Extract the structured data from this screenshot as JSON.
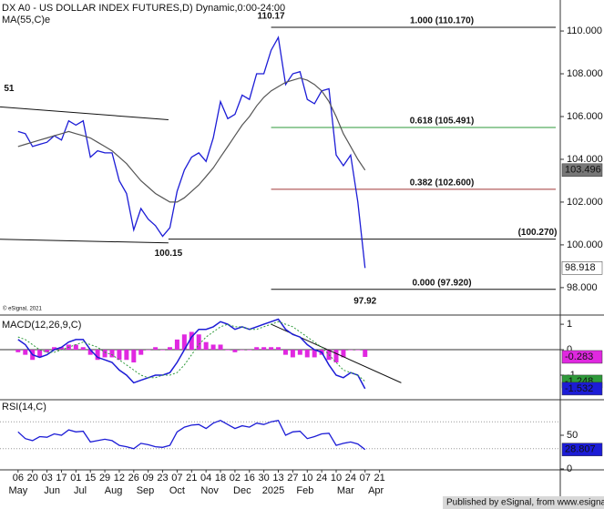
{
  "chart_data": {
    "type": "line",
    "title": "DX A0 - US DOLLAR INDEX FUTURES,D) Dynamic,0:00-24:00",
    "source": "© eSignal, 2021",
    "footer": "Published by eSignal, from www.esignal.com",
    "x": [
      0,
      1,
      2,
      3,
      4,
      5,
      6,
      7,
      8,
      9,
      10,
      11,
      12,
      13,
      14,
      15,
      16,
      17,
      18,
      19,
      20,
      21,
      22,
      23,
      24,
      25,
      26,
      27,
      28,
      29,
      30,
      31,
      32,
      33,
      34,
      35,
      36,
      37,
      38,
      39,
      40,
      41,
      42,
      43,
      44,
      45,
      46,
      47,
      48
    ],
    "xlim": [
      -2.5,
      75
    ],
    "xticks": [
      {
        "value": 0,
        "label": "06"
      },
      {
        "value": 2,
        "label": "20"
      },
      {
        "value": 4,
        "label": "03"
      },
      {
        "value": 6,
        "label": "17"
      },
      {
        "value": 8,
        "label": "01"
      },
      {
        "value": 10,
        "label": "15"
      },
      {
        "value": 12,
        "label": "29"
      },
      {
        "value": 14,
        "label": "12"
      },
      {
        "value": 16,
        "label": "26"
      },
      {
        "value": 18,
        "label": "09"
      },
      {
        "value": 20,
        "label": "23"
      },
      {
        "value": 22,
        "label": "07"
      },
      {
        "value": 24,
        "label": "21"
      },
      {
        "value": 26,
        "label": "04"
      },
      {
        "value": 28,
        "label": "18"
      },
      {
        "value": 30,
        "label": "02"
      },
      {
        "value": 32,
        "label": "16"
      },
      {
        "value": 34,
        "label": "30"
      },
      {
        "value": 36,
        "label": "13"
      },
      {
        "value": 38,
        "label": "27"
      },
      {
        "value": 40,
        "label": "10"
      },
      {
        "value": 42,
        "label": "24"
      },
      {
        "value": 44,
        "label": "10"
      },
      {
        "value": 46,
        "label": "24"
      },
      {
        "value": 48,
        "label": "07"
      },
      {
        "value": 50,
        "label": "21"
      }
    ],
    "month_ticks": [
      {
        "value": 0,
        "label": "May"
      },
      {
        "value": 4.7,
        "label": "Jun"
      },
      {
        "value": 8.6,
        "label": "Jul"
      },
      {
        "value": 13.2,
        "label": "Aug"
      },
      {
        "value": 17.6,
        "label": "Sep"
      },
      {
        "value": 22,
        "label": "Oct"
      },
      {
        "value": 26.5,
        "label": "Nov"
      },
      {
        "value": 31,
        "label": "Dec"
      },
      {
        "value": 35.3,
        "label": "2025"
      },
      {
        "value": 39.7,
        "label": "Feb"
      },
      {
        "value": 45.3,
        "label": "Mar"
      },
      {
        "value": 49.5,
        "label": "Apr"
      }
    ],
    "ylim": [
      96.76,
      111.45
    ],
    "yticks": [
      {
        "value": 110,
        "label": "110.000"
      },
      {
        "value": 108,
        "label": "108.000"
      },
      {
        "value": 106,
        "label": "106.000"
      },
      {
        "value": 104,
        "label": "104.000"
      },
      {
        "value": 102,
        "label": "102.000"
      },
      {
        "value": 100,
        "label": "100.000"
      },
      {
        "value": 98,
        "label": "98.000"
      }
    ],
    "series": [
      {
        "color": "#1c1cd6",
        "values": [
          105.3,
          105.2,
          104.6,
          104.7,
          104.8,
          105.1,
          104.9,
          105.8,
          105.6,
          105.8,
          104.1,
          104.4,
          104.3,
          104.3,
          103.0,
          102.4,
          100.7,
          101.7,
          101.2,
          100.9,
          100.4,
          100.8,
          102.5,
          103.5,
          104.1,
          104.3,
          103.9,
          105.0,
          106.7,
          105.9,
          106.1,
          107.0,
          106.8,
          108.0,
          108.0,
          109.1,
          109.7,
          107.5,
          108.0,
          108.1,
          106.8,
          106.6,
          107.2,
          107.3,
          104.2,
          103.7,
          104.2,
          102.0,
          98.918
        ]
      },
      {
        "name": "MA(55,C)e",
        "color": "#555555",
        "values": [
          104.6,
          104.7,
          104.8,
          104.9,
          105.0,
          105.1,
          105.2,
          105.3,
          105.2,
          105.1,
          105.0,
          104.8,
          104.6,
          104.4,
          104.1,
          103.8,
          103.4,
          103.0,
          102.7,
          102.4,
          102.2,
          102.0,
          102.0,
          102.2,
          102.5,
          102.8,
          103.2,
          103.6,
          104.1,
          104.6,
          105.1,
          105.6,
          106.0,
          106.5,
          106.9,
          107.2,
          107.4,
          107.6,
          107.7,
          107.8,
          107.7,
          107.5,
          107.2,
          106.7,
          106.0,
          105.2,
          104.6,
          104.0,
          103.496
        ]
      }
    ],
    "fib_levels": [
      {
        "label": "1.000 (110.170)",
        "value": 110.17,
        "color": "#111111"
      },
      {
        "label": "0.618 (105.491)",
        "value": 105.491,
        "color": "#2e9a3a"
      },
      {
        "label": "0.382 (102.600)",
        "value": 102.6,
        "color": "#a03838"
      },
      {
        "label": "0.000 (97.920)",
        "value": 97.92,
        "color": "#111111"
      }
    ],
    "levels": [
      {
        "label": "(100.270)",
        "value": 100.27,
        "color": "#111111"
      }
    ],
    "trendlines": [
      {
        "x": [
          -2.5,
          20.8
        ],
        "y": [
          106.45,
          105.85
        ]
      },
      {
        "x": [
          -2.5,
          20.8
        ],
        "y": [
          100.26,
          100.09
        ]
      }
    ],
    "annotations": [
      {
        "text": "110.17",
        "x": 35,
        "y": 110.17
      },
      {
        "text": "100.15",
        "x": 20.8,
        "y": 100.15
      },
      {
        "text": "97.92",
        "x": 48,
        "y": 97.92
      },
      {
        "text": "51",
        "x": -2.2,
        "y": 106.8
      }
    ],
    "macd": {
      "title": "MACD(12,26,9,C)",
      "ylim": [
        -1.93,
        1.29
      ],
      "yticks": [
        1,
        0,
        -1
      ],
      "baseline": 0,
      "series": [
        {
          "color": "#1c1cd6",
          "values": [
            0.4,
            0.2,
            -0.2,
            -0.3,
            -0.2,
            0.0,
            0.1,
            0.3,
            0.4,
            0.4,
            0.0,
            -0.3,
            -0.4,
            -0.5,
            -0.8,
            -1.0,
            -1.3,
            -1.2,
            -1.1,
            -1.0,
            -1.0,
            -0.9,
            -0.5,
            0.0,
            0.5,
            0.8,
            0.8,
            0.9,
            1.1,
            1.0,
            0.8,
            0.9,
            0.8,
            0.9,
            1.0,
            1.1,
            1.2,
            0.8,
            0.6,
            0.5,
            0.2,
            0.0,
            -0.1,
            -0.6,
            -1.0,
            -1.1,
            -0.9,
            -1.0,
            -1.532
          ]
        },
        {
          "color": "#2e9a3a",
          "dashed": true,
          "values": [
            0.5,
            0.4,
            0.2,
            0.0,
            -0.1,
            -0.1,
            0.0,
            0.1,
            0.2,
            0.3,
            0.2,
            0.1,
            -0.1,
            -0.2,
            -0.4,
            -0.6,
            -0.8,
            -1.0,
            -1.1,
            -1.1,
            -1.0,
            -1.0,
            -0.9,
            -0.6,
            -0.2,
            0.2,
            0.5,
            0.7,
            0.9,
            1.0,
            0.9,
            0.9,
            0.8,
            0.8,
            0.9,
            1.0,
            1.1,
            1.0,
            0.9,
            0.7,
            0.5,
            0.3,
            0.1,
            -0.2,
            -0.5,
            -0.8,
            -0.9,
            -1.0,
            -1.248
          ]
        }
      ],
      "histogram": {
        "color": "#e028e0",
        "values": [
          -0.1,
          -0.2,
          -0.4,
          -0.3,
          -0.1,
          0.1,
          0.1,
          0.2,
          0.2,
          0.1,
          -0.2,
          -0.4,
          -0.3,
          -0.3,
          -0.4,
          -0.4,
          -0.5,
          -0.2,
          0.0,
          0.1,
          0.0,
          0.1,
          0.4,
          0.6,
          0.7,
          0.6,
          0.3,
          0.2,
          0.2,
          0.0,
          -0.1,
          0.0,
          0.0,
          0.1,
          0.1,
          0.1,
          0.1,
          -0.2,
          -0.3,
          -0.2,
          -0.3,
          -0.3,
          -0.2,
          -0.4,
          -0.5,
          -0.3,
          0.0,
          0.0,
          -0.283
        ]
      },
      "trendlines": [
        {
          "x": [
            35,
            53
          ],
          "y": [
            1.0,
            -1.3
          ]
        }
      ]
    },
    "rsi": {
      "title": "RSI(14,C)",
      "ylim": [
        0,
        100
      ],
      "yticks": [
        50,
        0
      ],
      "guides": [
        70,
        30
      ],
      "series": [
        {
          "color": "#1c1cd6",
          "values": [
            55,
            45,
            42,
            48,
            47,
            52,
            50,
            58,
            55,
            56,
            40,
            42,
            44,
            42,
            35,
            33,
            30,
            38,
            36,
            33,
            32,
            35,
            55,
            62,
            65,
            66,
            60,
            68,
            72,
            66,
            60,
            64,
            62,
            68,
            66,
            70,
            72,
            50,
            55,
            56,
            45,
            48,
            52,
            53,
            35,
            38,
            40,
            37,
            28.807
          ]
        }
      ]
    }
  }
}
